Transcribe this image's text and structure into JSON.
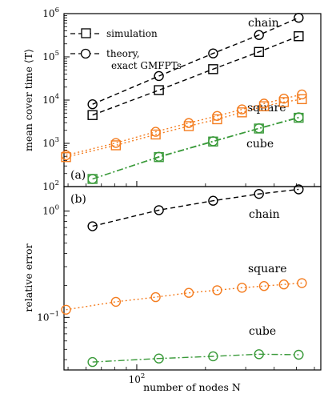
{
  "chart_data": [
    {
      "panel_label": "(a)",
      "type": "line",
      "scale": {
        "x": "log",
        "y": "log"
      },
      "xlim": [
        48,
        640
      ],
      "ylim": [
        100,
        1000000
      ],
      "ylabel": "mean cover time ⟨T⟩",
      "yticks": [
        {
          "value": 100,
          "label": "10",
          "exp": "2"
        },
        {
          "value": 1000,
          "label": "10",
          "exp": "3"
        },
        {
          "value": 10000,
          "label": "10",
          "exp": "4"
        },
        {
          "value": 100000,
          "label": "10",
          "exp": "5"
        },
        {
          "value": 1000000,
          "label": "10",
          "exp": "6"
        }
      ],
      "legend": {
        "position": "top-left",
        "entries": [
          {
            "label": "simulation",
            "marker": "square",
            "line": "dashed"
          },
          {
            "label": "theory,",
            "label2": "exact GMFPTs",
            "marker": "circle",
            "line": "dashed"
          }
        ]
      },
      "series": [
        {
          "name": "chain",
          "kind": "simulation",
          "color": "#000000",
          "marker": "square",
          "dash": "dashed",
          "points": [
            [
              64,
              4500
            ],
            [
              125,
              17000
            ],
            [
              216,
              52000
            ],
            [
              343,
              130000
            ],
            [
              512,
              300000
            ]
          ]
        },
        {
          "name": "chain",
          "kind": "theory",
          "color": "#000000",
          "marker": "circle",
          "dash": "dashed",
          "points": [
            [
              64,
              8000
            ],
            [
              125,
              36000
            ],
            [
              216,
              120000
            ],
            [
              343,
              320000
            ],
            [
              512,
              800000
            ]
          ]
        },
        {
          "name": "square",
          "kind": "simulation",
          "color": "#f47d20",
          "marker": "square",
          "dash": "dotted",
          "points": [
            [
              49,
              480
            ],
            [
              81,
              900
            ],
            [
              121,
              1600
            ],
            [
              169,
              2500
            ],
            [
              225,
              3600
            ],
            [
              289,
              5200
            ],
            [
              361,
              7200
            ],
            [
              441,
              9000
            ],
            [
              529,
              10500
            ]
          ]
        },
        {
          "name": "square",
          "kind": "theory",
          "color": "#f47d20",
          "marker": "circle",
          "dash": "dotted",
          "points": [
            [
              49,
              530
            ],
            [
              81,
              1020
            ],
            [
              121,
              1850
            ],
            [
              169,
              2950
            ],
            [
              225,
              4300
            ],
            [
              289,
              6100
            ],
            [
              361,
              8300
            ],
            [
              441,
              10800
            ],
            [
              529,
              13500
            ]
          ]
        },
        {
          "name": "cube",
          "kind": "simulation",
          "color": "#3a9a3a",
          "marker": "square",
          "dash": "dashdot",
          "points": [
            [
              64,
              150
            ],
            [
              125,
              480
            ],
            [
              216,
              1100
            ],
            [
              343,
              2200
            ],
            [
              512,
              3900
            ]
          ]
        },
        {
          "name": "cube",
          "kind": "theory",
          "color": "#3a9a3a",
          "marker": "circle",
          "dash": "dashdot",
          "points": [
            [
              64,
              150
            ],
            [
              125,
              490
            ],
            [
              216,
              1120
            ],
            [
              343,
              2230
            ],
            [
              512,
              4000
            ]
          ]
        }
      ],
      "annotations": [
        {
          "text": "chain",
          "color": "#000000"
        },
        {
          "text": "square",
          "color": "#000000"
        },
        {
          "text": "cube",
          "color": "#000000"
        }
      ]
    },
    {
      "panel_label": "(b)",
      "type": "line",
      "scale": {
        "x": "log",
        "y": "log"
      },
      "xlim": [
        48,
        640
      ],
      "ylim": [
        0.032,
        1.7
      ],
      "ylabel": "relative error",
      "xlabel": "number of nodes N",
      "xticks": [
        {
          "value": 100,
          "label": "10",
          "exp": "2"
        }
      ],
      "yticks": [
        {
          "value": 0.1,
          "label": "10",
          "exp": "−1"
        },
        {
          "value": 1,
          "label": "10",
          "exp": "0"
        }
      ],
      "series": [
        {
          "name": "chain",
          "color": "#000000",
          "marker": "circle",
          "dash": "dashed",
          "points": [
            [
              64,
              0.72
            ],
            [
              125,
              1.02
            ],
            [
              216,
              1.25
            ],
            [
              343,
              1.45
            ],
            [
              512,
              1.6
            ]
          ]
        },
        {
          "name": "square",
          "color": "#f47d20",
          "marker": "circle",
          "dash": "dotted",
          "points": [
            [
              49,
              0.118
            ],
            [
              81,
              0.14
            ],
            [
              121,
              0.155
            ],
            [
              169,
              0.17
            ],
            [
              225,
              0.18
            ],
            [
              289,
              0.19
            ],
            [
              361,
              0.197
            ],
            [
              441,
              0.204
            ],
            [
              529,
              0.21
            ]
          ]
        },
        {
          "name": "cube",
          "color": "#3a9a3a",
          "marker": "circle",
          "dash": "dashdot",
          "points": [
            [
              64,
              0.038
            ],
            [
              125,
              0.041
            ],
            [
              216,
              0.043
            ],
            [
              343,
              0.045
            ],
            [
              512,
              0.0445
            ]
          ]
        }
      ],
      "annotations": [
        {
          "text": "chain",
          "color": "#000000"
        },
        {
          "text": "square",
          "color": "#000000"
        },
        {
          "text": "cube",
          "color": "#000000"
        }
      ]
    }
  ]
}
